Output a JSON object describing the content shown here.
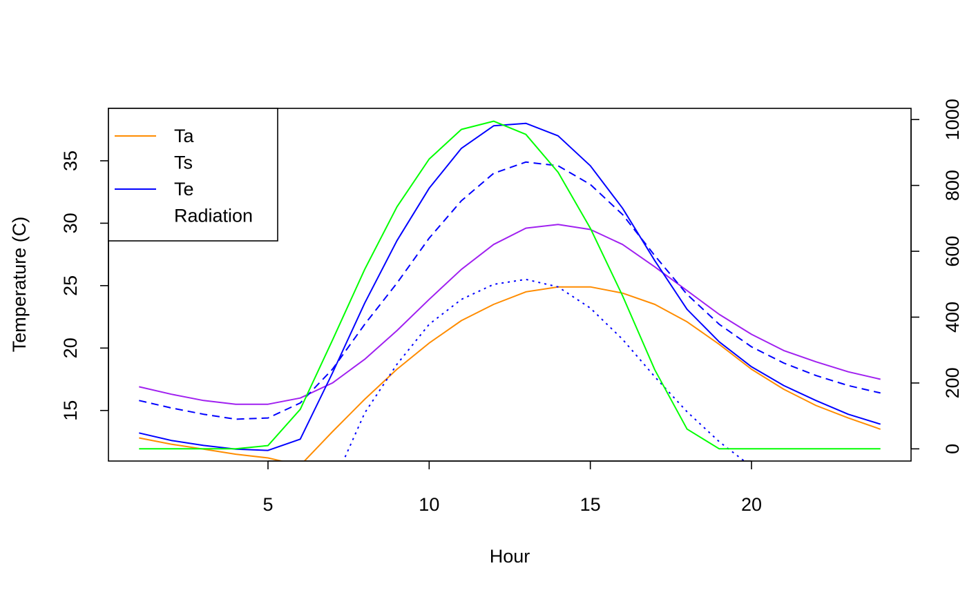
{
  "chart_data": {
    "type": "line",
    "title": "",
    "xlabel": "Hour",
    "ylabel": "Temperature (C)",
    "y2label": "",
    "xlim": [
      0.05,
      24.95
    ],
    "ylim": [
      10.95,
      39.2
    ],
    "y2lim": [
      -37,
      1034
    ],
    "x_ticks": [
      5,
      10,
      15,
      20
    ],
    "y_ticks": [
      15,
      20,
      25,
      30,
      35
    ],
    "y2_ticks": [
      0,
      200,
      400,
      600,
      800,
      1000
    ],
    "grid": false,
    "legend": {
      "position": "top-left",
      "entries": [
        "Ta",
        "Ts",
        "Te",
        "Radiation"
      ]
    },
    "x": [
      1,
      2,
      3,
      4,
      5,
      6,
      7,
      8,
      9,
      10,
      11,
      12,
      13,
      14,
      15,
      16,
      17,
      18,
      19,
      20,
      21,
      22,
      23,
      24
    ],
    "series": [
      {
        "name": "Ta",
        "color": "#ff8c00",
        "dash": "solid",
        "axis": "left",
        "values": [
          12.8,
          12.3,
          11.9,
          11.5,
          11.2,
          10.6,
          13.3,
          15.9,
          18.3,
          20.4,
          22.2,
          23.5,
          24.5,
          24.9,
          24.9,
          24.4,
          23.5,
          22.1,
          20.3,
          18.3,
          16.7,
          15.4,
          14.4,
          13.5
        ]
      },
      {
        "color": "#a020f0",
        "dash": "solid",
        "axis": "left",
        "values": [
          16.9,
          16.3,
          15.8,
          15.5,
          15.5,
          16.0,
          17.2,
          19.1,
          21.4,
          23.9,
          26.3,
          28.3,
          29.6,
          29.9,
          29.5,
          28.3,
          26.5,
          24.6,
          22.7,
          21.1,
          19.8,
          18.9,
          18.1,
          17.5
        ]
      },
      {
        "name": "Te",
        "color": "#0000ff",
        "dash": "solid",
        "axis": "left",
        "values": [
          13.2,
          12.6,
          12.2,
          11.9,
          11.8,
          12.7,
          18.0,
          23.6,
          28.6,
          32.8,
          36.0,
          37.8,
          38.0,
          37.0,
          34.6,
          31.2,
          27.0,
          23.1,
          20.5,
          18.5,
          17.0,
          15.8,
          14.7,
          13.9
        ]
      },
      {
        "color": "#0000ff",
        "dash": "dashed",
        "axis": "left",
        "values": [
          15.8,
          15.2,
          14.7,
          14.3,
          14.4,
          15.6,
          18.3,
          21.9,
          25.2,
          28.8,
          31.8,
          34.0,
          34.9,
          34.6,
          33.1,
          30.7,
          27.4,
          24.3,
          21.9,
          20.1,
          18.8,
          17.8,
          17.0,
          16.4
        ]
      },
      {
        "color": "#0000ff",
        "dash": "dotted",
        "axis": "left",
        "values": [
          null,
          null,
          null,
          null,
          null,
          null,
          9.0,
          14.8,
          18.7,
          21.9,
          23.9,
          25.1,
          25.5,
          24.9,
          23.2,
          20.7,
          17.7,
          14.9,
          12.5,
          10.5,
          8.7,
          null,
          null,
          null
        ]
      },
      {
        "name": "Radiation",
        "color": "#00ff00",
        "dash": "solid",
        "axis": "right",
        "values": [
          0,
          0,
          0,
          0,
          10,
          120,
          330,
          545,
          735,
          880,
          970,
          995,
          955,
          840,
          670,
          465,
          240,
          60,
          0,
          0,
          0,
          0,
          0,
          0
        ]
      }
    ]
  }
}
